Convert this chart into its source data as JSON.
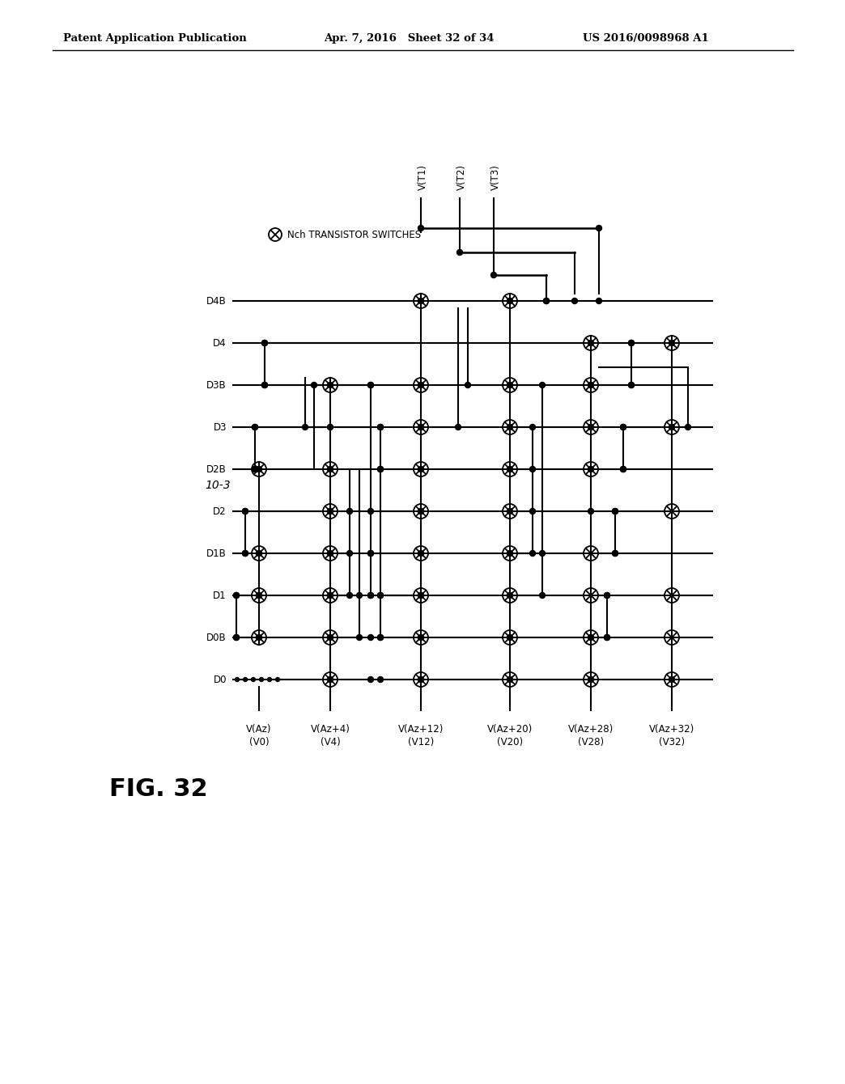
{
  "header_left": "Patent Application Publication",
  "header_center": "Apr. 7, 2016   Sheet 32 of 34",
  "header_right": "US 2016/0098968 A1",
  "fig_label": "FIG. 32",
  "block_label": "10-3",
  "legend_symbol_text": "Nch TRANSISTOR SWITCHES",
  "background_color": "#ffffff",
  "line_color": "#000000",
  "font_color": "#000000",
  "row_labels": [
    "D0",
    "D0B",
    "D1",
    "D1B",
    "D2",
    "D2B",
    "D3",
    "D3B",
    "D4",
    "D4B"
  ],
  "col_labels": [
    "V(Az)\n(V0)",
    "V(Az+4)\n(V4)",
    "V(Az+12)\n(V12)",
    "V(Az+20)\n(V20)",
    "V(Az+28)\n(V28)",
    "V(Az+32)\n(V32)"
  ],
  "vt_labels": [
    "V(T1)",
    "V(T2)",
    "V(T3)"
  ],
  "switches": [
    [
      0,
      "D0B"
    ],
    [
      0,
      "D1"
    ],
    [
      0,
      "D1B"
    ],
    [
      0,
      "D2B"
    ],
    [
      1,
      "D0"
    ],
    [
      1,
      "D0B"
    ],
    [
      1,
      "D1"
    ],
    [
      1,
      "D1B"
    ],
    [
      1,
      "D2"
    ],
    [
      1,
      "D2B"
    ],
    [
      1,
      "D3B"
    ],
    [
      2,
      "D0"
    ],
    [
      2,
      "D0B"
    ],
    [
      2,
      "D1"
    ],
    [
      2,
      "D1B"
    ],
    [
      2,
      "D2"
    ],
    [
      2,
      "D2B"
    ],
    [
      2,
      "D3"
    ],
    [
      2,
      "D3B"
    ],
    [
      2,
      "D4B"
    ],
    [
      3,
      "D0"
    ],
    [
      3,
      "D0B"
    ],
    [
      3,
      "D1"
    ],
    [
      3,
      "D1B"
    ],
    [
      3,
      "D2"
    ],
    [
      3,
      "D2B"
    ],
    [
      3,
      "D3"
    ],
    [
      3,
      "D3B"
    ],
    [
      3,
      "D4B"
    ],
    [
      4,
      "D0"
    ],
    [
      4,
      "D0B"
    ],
    [
      4,
      "D1"
    ],
    [
      4,
      "D1B"
    ],
    [
      4,
      "D2B"
    ],
    [
      4,
      "D3"
    ],
    [
      4,
      "D3B"
    ],
    [
      4,
      "D4"
    ],
    [
      5,
      "D0"
    ],
    [
      5,
      "D0B"
    ],
    [
      5,
      "D1"
    ],
    [
      5,
      "D2"
    ],
    [
      5,
      "D3"
    ],
    [
      5,
      "D4"
    ]
  ]
}
